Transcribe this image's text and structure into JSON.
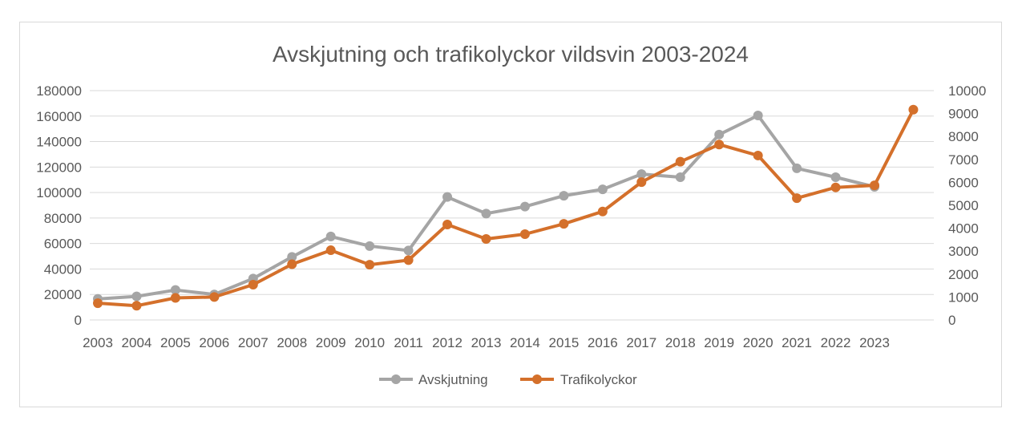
{
  "chart_data": {
    "type": "line",
    "title": "Avskjutning och trafikolyckor vildsvin 2003-2024",
    "categories": [
      "2003",
      "2004",
      "2005",
      "2006",
      "2007",
      "2008",
      "2009",
      "2010",
      "2011",
      "2012",
      "2013",
      "2014",
      "2015",
      "2016",
      "2017",
      "2018",
      "2019",
      "2020",
      "2021",
      "2022",
      "2023",
      ""
    ],
    "x_tick_labels": [
      "2003",
      "2004",
      "2005",
      "2006",
      "2007",
      "2008",
      "2009",
      "2010",
      "2011",
      "2012",
      "2013",
      "2014",
      "2015",
      "2016",
      "2017",
      "2018",
      "2019",
      "2020",
      "2021",
      "2022",
      "2023"
    ],
    "series": [
      {
        "name": "Avskjutning",
        "axis": "left",
        "color": "#a5a5a5",
        "values": [
          16500,
          18500,
          23500,
          20000,
          32500,
          49500,
          65500,
          58000,
          54500,
          96500,
          83500,
          89000,
          97500,
          102500,
          114500,
          112000,
          145500,
          160500,
          119000,
          112000,
          104500,
          null
        ]
      },
      {
        "name": "Trafikolyckor",
        "axis": "right",
        "color": "#d4702b",
        "values": [
          730,
          620,
          960,
          1000,
          1540,
          2430,
          3040,
          2410,
          2610,
          4160,
          3530,
          3740,
          4190,
          4730,
          6010,
          6900,
          7650,
          7170,
          5310,
          5780,
          5870,
          9170
        ]
      }
    ],
    "y_left": {
      "min": 0,
      "max": 180000,
      "step": 20000,
      "ticks": [
        "0",
        "20000",
        "40000",
        "60000",
        "80000",
        "100000",
        "120000",
        "140000",
        "160000",
        "180000"
      ]
    },
    "y_right": {
      "min": 0,
      "max": 10000,
      "step": 1000,
      "ticks": [
        "0",
        "1000",
        "2000",
        "3000",
        "4000",
        "5000",
        "6000",
        "7000",
        "8000",
        "9000",
        "10000"
      ]
    },
    "grid": true,
    "legend_position": "bottom"
  }
}
